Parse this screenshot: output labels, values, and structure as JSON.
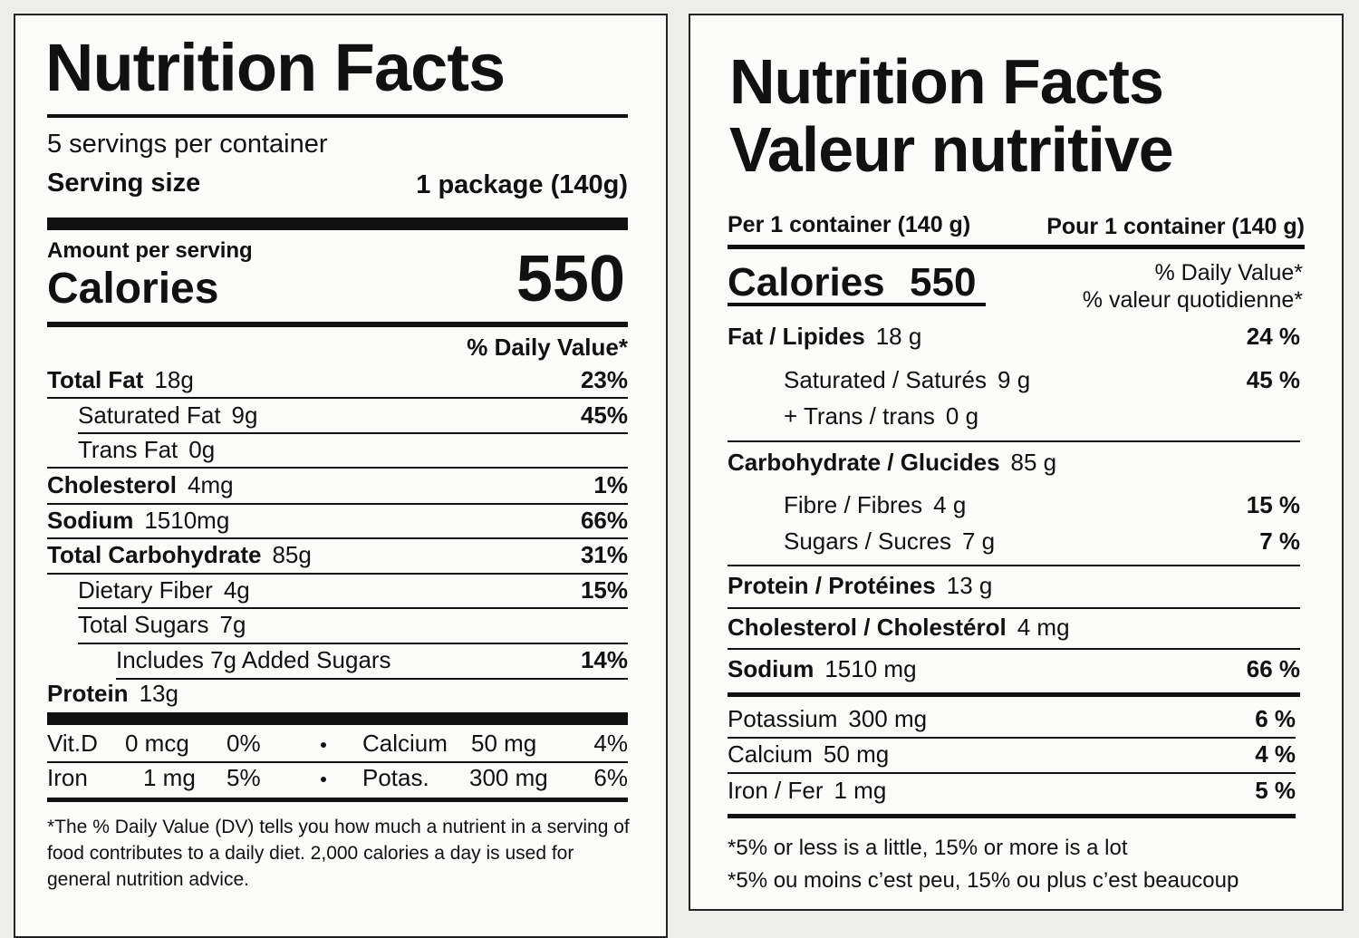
{
  "left": {
    "title": "Nutrition Facts",
    "servings": "5 servings per container",
    "serving_size_label": "Serving size",
    "serving_size_value": "1 package (140g)",
    "amount_per_serving": "Amount per serving",
    "calories_label": "Calories",
    "calories_value": "550",
    "dv_header": "% Daily Value*",
    "rows": [
      [
        "Total Fat",
        "18g",
        "23%"
      ],
      [
        "Saturated Fat",
        "9g",
        "45%"
      ],
      [
        "Trans Fat",
        "0g"
      ],
      [
        "Cholesterol",
        "4mg",
        "1%"
      ],
      [
        "Sodium",
        "1510mg",
        "66%"
      ],
      [
        "Total Carbohydrate",
        "85g",
        "31%"
      ],
      [
        "Dietary Fiber",
        "4g",
        "15%"
      ],
      [
        "Total Sugars",
        "7g"
      ],
      [
        "Includes 7g Added Sugars",
        "14%"
      ],
      [
        "Protein",
        "13g"
      ]
    ],
    "vitamins": [
      [
        "Vit.D",
        "0 mcg",
        "0%",
        "Calcium",
        "50 mg",
        "4%"
      ],
      [
        "Iron",
        "1 mg",
        "5%",
        "Potas.",
        "300 mg",
        "6%"
      ]
    ],
    "footnote": "*The % Daily Value (DV) tells you how much a nutrient in a serving of food contributes to a daily diet. 2,000 calories a day is used for general nutrition advice."
  },
  "right": {
    "title_en": "Nutrition Facts",
    "title_fr": "Valeur nutritive",
    "per_en": "Per 1 container (140 g)",
    "per_fr": "Pour 1 container (140 g)",
    "calories_label": "Calories",
    "calories_value": "550",
    "dv_en": "% Daily Value*",
    "dv_fr": "% valeur quotidienne*",
    "rows": [
      [
        "Fat / Lipides",
        "18 g",
        "24 %"
      ],
      [
        "Saturated / Saturés",
        "9 g",
        "45 %"
      ],
      [
        "+ Trans / trans",
        "0 g"
      ],
      [
        "Carbohydrate / Glucides",
        "85 g"
      ],
      [
        "Fibre / Fibres",
        "4 g",
        "15 %"
      ],
      [
        "Sugars / Sucres",
        "7 g",
        "7 %"
      ],
      [
        "Protein / Protéines",
        "13 g"
      ],
      [
        "Cholesterol / Cholestérol",
        "4 mg"
      ],
      [
        "Sodium",
        "1510 mg",
        "66 %"
      ],
      [
        "Potassium",
        "300 mg",
        "6 %"
      ],
      [
        "Calcium",
        "50 mg",
        "4 %"
      ],
      [
        "Iron / Fer",
        "1 mg",
        "5 %"
      ]
    ],
    "footnote_en": "*5% or less is a little, 15% or more is a lot",
    "footnote_fr": "*5% ou moins c’est peu, 15% ou plus c’est beaucoup"
  }
}
